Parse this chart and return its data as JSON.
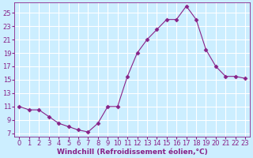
{
  "x": [
    0,
    1,
    2,
    3,
    4,
    5,
    6,
    7,
    8,
    9,
    10,
    11,
    12,
    13,
    14,
    15,
    16,
    17,
    18,
    19,
    20,
    21,
    22,
    23
  ],
  "y": [
    11,
    10.5,
    10.5,
    9.5,
    8.5,
    8.0,
    7.5,
    7.2,
    8.5,
    11.0,
    11.0,
    15.5,
    19.0,
    21.0,
    22.5,
    24.0,
    24.0,
    26.0,
    24.0,
    19.5,
    17.0,
    15.5,
    15.5,
    15.2
  ],
  "line_color": "#882288",
  "marker": "D",
  "marker_size": 2.5,
  "bg_color": "#cceeff",
  "grid_color": "#ffffff",
  "xlabel": "Windchill (Refroidissement éolien,°C)",
  "ylim": [
    6.5,
    26.5
  ],
  "xlim": [
    -0.5,
    23.5
  ],
  "yticks": [
    7,
    9,
    11,
    13,
    15,
    17,
    19,
    21,
    23,
    25
  ],
  "xticks": [
    0,
    1,
    2,
    3,
    4,
    5,
    6,
    7,
    8,
    9,
    10,
    11,
    12,
    13,
    14,
    15,
    16,
    17,
    18,
    19,
    20,
    21,
    22,
    23
  ],
  "label_color": "#882288",
  "tick_color": "#882288",
  "font_size_xlabel": 6.5,
  "font_size_ticks": 6.0
}
